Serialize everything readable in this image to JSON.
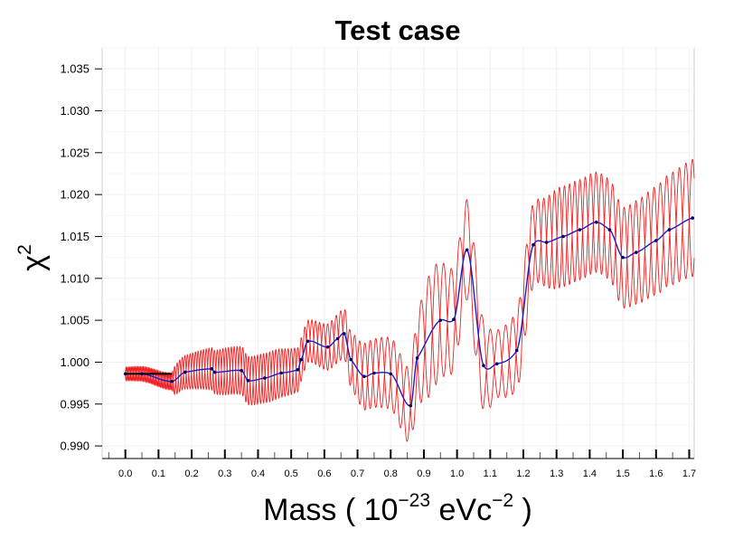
{
  "chart_data": {
    "type": "line",
    "title": "Test case",
    "ylabel": {
      "base": "χ",
      "exp": "2"
    },
    "xlabel": {
      "pre": "Mass ( 10",
      "exp1": "−23",
      "mid": " eVc",
      "exp2": "−2",
      "post": " )"
    },
    "xlim": [
      -0.07,
      1.715
    ],
    "ylim": [
      0.9885,
      1.0375
    ],
    "yticks": [
      "0.990",
      "0.995",
      "1.000",
      "1.005",
      "1.010",
      "1.015",
      "1.020",
      "1.025",
      "1.030",
      "1.035"
    ],
    "xticks": [
      "0.0",
      "0.1",
      "0.2",
      "0.3",
      "0.4",
      "0.5",
      "0.6",
      "0.7",
      "0.8",
      "0.9",
      "1.0",
      "1.1",
      "1.2",
      "1.3",
      "1.4",
      "1.5",
      "1.6",
      "1.7"
    ],
    "grid": true,
    "series_colors": {
      "envelope": "#ee2222",
      "fit": "#1a1acc",
      "points": "#000066"
    },
    "series": [
      {
        "role": "fit-points",
        "points": [
          [
            0.0,
            0.9986
          ],
          [
            0.05,
            0.9986
          ],
          [
            0.14,
            0.9977
          ],
          [
            0.18,
            0.9988
          ],
          [
            0.26,
            0.9992
          ],
          [
            0.27,
            0.9988
          ],
          [
            0.35,
            0.999
          ],
          [
            0.37,
            0.9978
          ],
          [
            0.42,
            0.9981
          ],
          [
            0.47,
            0.9987
          ],
          [
            0.52,
            0.9991
          ],
          [
            0.53,
            1.0003
          ],
          [
            0.55,
            1.0025
          ],
          [
            0.61,
            1.0018
          ],
          [
            0.64,
            1.0028
          ],
          [
            0.66,
            1.0034
          ],
          [
            0.68,
            1.0003
          ],
          [
            0.72,
            0.9983
          ],
          [
            0.75,
            0.9987
          ],
          [
            0.8,
            0.9986
          ],
          [
            0.86,
            0.9948
          ],
          [
            0.88,
            1.0005
          ],
          [
            0.95,
            1.005
          ],
          [
            0.99,
            1.0051
          ],
          [
            1.03,
            1.0134
          ],
          [
            1.08,
            0.9996
          ],
          [
            1.12,
            0.9998
          ],
          [
            1.18,
            1.0014
          ],
          [
            1.23,
            1.014
          ],
          [
            1.27,
            1.0143
          ],
          [
            1.32,
            1.015
          ],
          [
            1.37,
            1.0158
          ],
          [
            1.42,
            1.0167
          ],
          [
            1.46,
            1.0158
          ],
          [
            1.5,
            1.0125
          ],
          [
            1.54,
            1.0131
          ],
          [
            1.6,
            1.0145
          ],
          [
            1.64,
            1.0158
          ],
          [
            1.71,
            1.0172
          ]
        ]
      },
      {
        "role": "oscillation-envelope",
        "amplitude": [
          [
            0.0,
            0.0008
          ],
          [
            0.14,
            0.001
          ],
          [
            0.15,
            0.0018
          ],
          [
            0.3,
            0.0028
          ],
          [
            0.45,
            0.003
          ],
          [
            0.55,
            0.0025
          ],
          [
            0.66,
            0.003
          ],
          [
            0.72,
            0.004
          ],
          [
            0.86,
            0.0045
          ],
          [
            0.92,
            0.0075
          ],
          [
            1.0,
            0.006
          ],
          [
            1.06,
            0.006
          ],
          [
            1.12,
            0.004
          ],
          [
            1.2,
            0.005
          ],
          [
            1.25,
            0.005
          ],
          [
            1.3,
            0.006
          ],
          [
            1.5,
            0.006
          ],
          [
            1.71,
            0.007
          ]
        ],
        "period": [
          [
            0.0,
            0.008
          ],
          [
            0.14,
            0.008
          ],
          [
            0.15,
            0.0155
          ],
          [
            0.5,
            0.019
          ],
          [
            0.7,
            0.03
          ],
          [
            0.9,
            0.045
          ],
          [
            1.1,
            0.048
          ],
          [
            1.3,
            0.03
          ],
          [
            1.71,
            0.04
          ]
        ]
      }
    ]
  }
}
